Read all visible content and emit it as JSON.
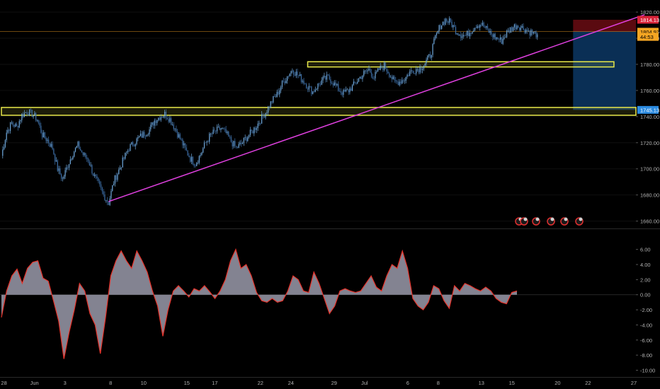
{
  "chart_data": [
    {
      "type": "candlestick",
      "ylim": [
        1656,
        1826
      ],
      "y_ticks": [
        "1820.00",
        "1800.00",
        "1780.00",
        "1760.00",
        "1740.00",
        "1720.00",
        "1700.00",
        "1680.00",
        "1660.00"
      ],
      "price_labels": [
        {
          "text": "1814.13",
          "value": 1814.13,
          "color": "#d8243a"
        },
        {
          "text": "1805.13",
          "value": 1805.13,
          "color": "#000000"
        },
        {
          "text": "1804.97",
          "value": 1804.97,
          "color": "#f5a623"
        },
        {
          "text": "44:53",
          "value": 1801.0,
          "color": "#f5a623"
        },
        {
          "text": "1745.13",
          "value": 1745.13,
          "color": "#2a8ae0"
        }
      ],
      "series": [
        {
          "values": [
            1710,
            1728,
            1735,
            1732,
            1741,
            1744,
            1742,
            1738,
            1726,
            1722,
            1716,
            1700,
            1692,
            1703,
            1712,
            1718,
            1711,
            1707,
            1696,
            1688,
            1680,
            1674,
            1690,
            1699,
            1708,
            1716,
            1720,
            1724,
            1727,
            1730,
            1737,
            1740,
            1742,
            1738,
            1731,
            1723,
            1715,
            1708,
            1704,
            1711,
            1720,
            1726,
            1729,
            1731,
            1727,
            1721,
            1716,
            1719,
            1724,
            1728,
            1733,
            1739,
            1745,
            1752,
            1757,
            1765,
            1771,
            1776,
            1772,
            1768,
            1763,
            1759,
            1764,
            1768,
            1770,
            1766,
            1761,
            1758,
            1760,
            1764,
            1769,
            1773,
            1776,
            1770,
            1776,
            1779,
            1773,
            1766,
            1767,
            1769,
            1774,
            1776,
            1777,
            1781,
            1787,
            1800,
            1810,
            1814,
            1812,
            1806,
            1803,
            1802,
            1806,
            1810,
            1811,
            1807,
            1803,
            1800,
            1798,
            1804,
            1808,
            1810,
            1808,
            1806,
            1804,
            1803
          ]
        }
      ],
      "annotations": {
        "trendline": {
          "from_index": 21,
          "from_value": 1675,
          "to_index": 126,
          "to_value": 1818,
          "color": "#e040e0"
        },
        "zones": [
          {
            "x_start_index": 0,
            "x_end_index": 137,
            "y_low": 1741,
            "y_high": 1747,
            "color": "#e8e84a"
          },
          {
            "x_start_index": 60,
            "x_end_index": 120,
            "y_low": 1778,
            "y_high": 1782,
            "color": "#e8e84a"
          }
        ],
        "short_position": {
          "start_index": 112,
          "end_index": 137,
          "entry": 1805.13,
          "stop": 1814.13,
          "target": 1745.13,
          "profit_color": "#0a2f55",
          "risk_color": "#5a0a10"
        },
        "price_line": {
          "value": 1805.13,
          "color": "#f5a623"
        }
      }
    },
    {
      "type": "area",
      "ylim": [
        -10.8,
        7.0
      ],
      "y_ticks": [
        "6.00",
        "4.00",
        "2.00",
        "0.00",
        "-2.00",
        "-4.00",
        "-6.00",
        "-8.00",
        "-10.00"
      ],
      "series": [
        {
          "values": [
            -3.0,
            0.5,
            2.5,
            3.4,
            1.5,
            3.5,
            4.3,
            4.5,
            2.2,
            1.8,
            -0.8,
            -3.5,
            -8.5,
            -5.0,
            -2.0,
            1.5,
            0.5,
            -2.5,
            -4.0,
            -7.8,
            -3.0,
            2.5,
            4.5,
            5.8,
            4.5,
            3.5,
            5.8,
            4.5,
            3.0,
            0.5,
            -1.5,
            -5.5,
            -2.0,
            0.5,
            1.2,
            0.5,
            -0.3,
            0.8,
            0.5,
            1.2,
            0.4,
            -0.5,
            0.5,
            2.0,
            4.5,
            6.0,
            3.5,
            4.0,
            2.5,
            0.3,
            -0.8,
            -1.0,
            -0.5,
            -1.0,
            -0.8,
            0.5,
            2.5,
            2.0,
            0.5,
            0.3,
            3.0,
            1.5,
            -0.5,
            -2.5,
            -1.5,
            0.5,
            0.8,
            0.5,
            0.3,
            0.5,
            1.5,
            2.5,
            1.0,
            0.5,
            2.5,
            4.0,
            3.5,
            5.8,
            3.5,
            -0.5,
            -1.5,
            -2.0,
            -1.0,
            1.2,
            0.8,
            -0.8,
            -1.8,
            1.2,
            0.5,
            1.5,
            1.2,
            0.8,
            0.5,
            1.0,
            0.5,
            -0.5,
            -1.0,
            -1.2,
            0.3,
            0.5
          ]
        }
      ],
      "line_color": "#e8332a",
      "fill_color": "#9a9aaa"
    }
  ],
  "x_axis": {
    "labels": [
      {
        "text": "28",
        "index": 0.5
      },
      {
        "text": "Jun",
        "index": 6.5
      },
      {
        "text": "3",
        "index": 12.5
      },
      {
        "text": "8",
        "index": 21.5
      },
      {
        "text": "10",
        "index": 28
      },
      {
        "text": "15",
        "index": 36.5
      },
      {
        "text": "17",
        "index": 42
      },
      {
        "text": "22",
        "index": 51
      },
      {
        "text": "24",
        "index": 57
      },
      {
        "text": "29",
        "index": 65.5
      },
      {
        "text": "Jul",
        "index": 71.5
      },
      {
        "text": "6",
        "index": 80
      },
      {
        "text": "8",
        "index": 86
      },
      {
        "text": "13",
        "index": 94.5
      },
      {
        "text": "15",
        "index": 100.5
      },
      {
        "text": "20",
        "index": 109.5
      },
      {
        "text": "22",
        "index": 115.5
      },
      {
        "text": "27",
        "index": 124.5
      }
    ],
    "count": 132
  },
  "event_icons": [
    "econ-event-icon",
    "econ-event-icon",
    "econ-event-icon",
    "econ-event-icon",
    "econ-event-icon",
    "econ-event-icon"
  ]
}
